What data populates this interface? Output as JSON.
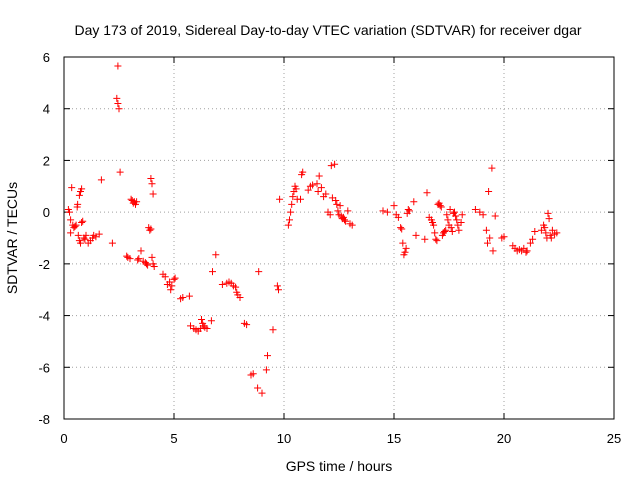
{
  "chart_data": {
    "type": "scatter",
    "title": "Day 173 of 2019, Sidereal Day-to-day VTEC variation (SDTVAR) for receiver dgar",
    "xlabel": "GPS time / hours",
    "ylabel": "SDTVAR / TECUs",
    "xlim": [
      0,
      25
    ],
    "ylim": [
      -8,
      6
    ],
    "x_ticks": [
      0,
      5,
      10,
      15,
      20,
      25
    ],
    "x_tick_labels": [
      "0",
      "5",
      "10",
      "15",
      "20",
      "25"
    ],
    "y_ticks": [
      -8,
      -6,
      -4,
      -2,
      0,
      2,
      4,
      6
    ],
    "y_tick_labels": [
      "-8",
      "-6",
      "-4",
      "-2",
      "0",
      "2",
      "4",
      "6"
    ],
    "grid": true,
    "marker": "+",
    "marker_color": "#ff0000",
    "series": [
      {
        "name": "SDTVAR",
        "points": [
          [
            0.2,
            0.1
          ],
          [
            0.25,
            0.0
          ],
          [
            0.3,
            -0.3
          ],
          [
            0.3,
            -0.8
          ],
          [
            0.35,
            0.95
          ],
          [
            0.4,
            -0.5
          ],
          [
            0.45,
            -0.6
          ],
          [
            0.5,
            -0.55
          ],
          [
            0.55,
            -0.5
          ],
          [
            0.6,
            0.2
          ],
          [
            0.62,
            0.3
          ],
          [
            0.7,
            0.65
          ],
          [
            0.75,
            0.8
          ],
          [
            0.8,
            0.9
          ],
          [
            0.65,
            -0.9
          ],
          [
            0.7,
            -1.1
          ],
          [
            0.75,
            -1.2
          ],
          [
            0.8,
            -0.4
          ],
          [
            0.85,
            -0.35
          ],
          [
            0.9,
            -1.0
          ],
          [
            0.95,
            -1.05
          ],
          [
            1.0,
            -0.9
          ],
          [
            1.1,
            -1.2
          ],
          [
            1.2,
            -1.1
          ],
          [
            1.3,
            -1.0
          ],
          [
            1.35,
            -0.9
          ],
          [
            1.45,
            -0.95
          ],
          [
            1.6,
            -0.85
          ],
          [
            1.7,
            1.25
          ],
          [
            2.2,
            -1.2
          ],
          [
            2.4,
            4.4
          ],
          [
            2.45,
            4.2
          ],
          [
            2.5,
            4.0
          ],
          [
            2.55,
            1.55
          ],
          [
            2.45,
            5.65
          ],
          [
            2.85,
            -1.7
          ],
          [
            2.9,
            -1.75
          ],
          [
            3.0,
            -1.8
          ],
          [
            3.05,
            0.5
          ],
          [
            3.1,
            0.45
          ],
          [
            3.15,
            0.35
          ],
          [
            3.2,
            0.4
          ],
          [
            3.25,
            0.3
          ],
          [
            3.3,
            0.4
          ],
          [
            3.35,
            -1.85
          ],
          [
            3.4,
            -1.8
          ],
          [
            3.5,
            -1.5
          ],
          [
            3.6,
            -1.9
          ],
          [
            3.7,
            -1.95
          ],
          [
            3.75,
            -2.0
          ],
          [
            3.8,
            -2.05
          ],
          [
            3.85,
            -0.6
          ],
          [
            3.9,
            -0.7
          ],
          [
            3.95,
            -0.65
          ],
          [
            3.95,
            1.3
          ],
          [
            4.0,
            1.1
          ],
          [
            4.05,
            0.7
          ],
          [
            4.0,
            -1.75
          ],
          [
            4.05,
            -2.0
          ],
          [
            4.1,
            -2.1
          ],
          [
            4.5,
            -2.4
          ],
          [
            4.6,
            -2.5
          ],
          [
            4.7,
            -2.8
          ],
          [
            4.8,
            -2.7
          ],
          [
            4.85,
            -3.0
          ],
          [
            4.9,
            -2.85
          ],
          [
            5.0,
            -2.6
          ],
          [
            5.05,
            -2.55
          ],
          [
            5.3,
            -3.35
          ],
          [
            5.4,
            -3.3
          ],
          [
            5.7,
            -3.25
          ],
          [
            5.75,
            -4.4
          ],
          [
            5.9,
            -4.5
          ],
          [
            6.0,
            -4.55
          ],
          [
            6.1,
            -4.6
          ],
          [
            6.2,
            -4.5
          ],
          [
            6.25,
            -4.15
          ],
          [
            6.3,
            -4.3
          ],
          [
            6.35,
            -4.4
          ],
          [
            6.4,
            -4.45
          ],
          [
            6.5,
            -4.5
          ],
          [
            6.7,
            -4.2
          ],
          [
            6.75,
            -2.3
          ],
          [
            6.9,
            -1.65
          ],
          [
            7.2,
            -2.8
          ],
          [
            7.4,
            -2.75
          ],
          [
            7.5,
            -2.7
          ],
          [
            7.6,
            -2.75
          ],
          [
            7.7,
            -2.85
          ],
          [
            7.8,
            -2.9
          ],
          [
            7.85,
            -3.1
          ],
          [
            7.9,
            -3.2
          ],
          [
            8.0,
            -3.3
          ],
          [
            8.2,
            -4.3
          ],
          [
            8.3,
            -4.35
          ],
          [
            8.5,
            -6.3
          ],
          [
            8.6,
            -6.25
          ],
          [
            8.8,
            -6.8
          ],
          [
            8.85,
            -2.3
          ],
          [
            9.0,
            -7.0
          ],
          [
            9.2,
            -6.1
          ],
          [
            9.25,
            -5.55
          ],
          [
            9.5,
            -4.55
          ],
          [
            9.7,
            -2.85
          ],
          [
            9.75,
            -3.0
          ],
          [
            9.8,
            0.5
          ],
          [
            10.2,
            -0.5
          ],
          [
            10.25,
            -0.3
          ],
          [
            10.3,
            0.0
          ],
          [
            10.35,
            0.3
          ],
          [
            10.4,
            0.6
          ],
          [
            10.45,
            0.8
          ],
          [
            10.5,
            1.0
          ],
          [
            10.55,
            0.9
          ],
          [
            10.6,
            0.5
          ],
          [
            10.75,
            0.5
          ],
          [
            10.8,
            1.45
          ],
          [
            10.85,
            1.55
          ],
          [
            11.1,
            0.85
          ],
          [
            11.2,
            1.0
          ],
          [
            11.3,
            1.05
          ],
          [
            11.5,
            1.1
          ],
          [
            11.55,
            0.8
          ],
          [
            11.6,
            1.4
          ],
          [
            11.7,
            0.95
          ],
          [
            11.8,
            0.6
          ],
          [
            11.9,
            0.7
          ],
          [
            12.0,
            0.0
          ],
          [
            12.1,
            -0.1
          ],
          [
            12.15,
            1.8
          ],
          [
            12.2,
            0.55
          ],
          [
            12.3,
            1.85
          ],
          [
            12.35,
            0.45
          ],
          [
            12.4,
            0.3
          ],
          [
            12.45,
            0.05
          ],
          [
            12.5,
            -0.1
          ],
          [
            12.55,
            0.25
          ],
          [
            12.6,
            -0.15
          ],
          [
            12.65,
            -0.25
          ],
          [
            12.7,
            -0.2
          ],
          [
            12.75,
            -0.3
          ],
          [
            12.8,
            -0.35
          ],
          [
            12.9,
            0.05
          ],
          [
            13.0,
            -0.45
          ],
          [
            13.1,
            -0.5
          ],
          [
            14.5,
            0.05
          ],
          [
            14.7,
            0.0
          ],
          [
            15.0,
            0.25
          ],
          [
            15.1,
            -0.1
          ],
          [
            15.2,
            -0.2
          ],
          [
            15.3,
            -0.6
          ],
          [
            15.35,
            -0.65
          ],
          [
            15.4,
            -1.2
          ],
          [
            15.45,
            -1.65
          ],
          [
            15.5,
            -1.55
          ],
          [
            15.55,
            -1.4
          ],
          [
            15.6,
            -0.05
          ],
          [
            15.65,
            0.1
          ],
          [
            15.7,
            0.05
          ],
          [
            15.9,
            0.4
          ],
          [
            16.0,
            -0.9
          ],
          [
            16.4,
            -1.05
          ],
          [
            16.5,
            0.75
          ],
          [
            16.6,
            -0.2
          ],
          [
            16.7,
            -0.3
          ],
          [
            16.75,
            -0.4
          ],
          [
            16.8,
            -0.5
          ],
          [
            16.85,
            -0.8
          ],
          [
            16.9,
            -1.05
          ],
          [
            16.95,
            -1.1
          ],
          [
            17.0,
            0.3
          ],
          [
            17.05,
            0.35
          ],
          [
            17.1,
            0.25
          ],
          [
            17.15,
            0.2
          ],
          [
            17.2,
            -0.9
          ],
          [
            17.25,
            -0.8
          ],
          [
            17.3,
            -0.75
          ],
          [
            17.35,
            -0.7
          ],
          [
            17.4,
            -0.1
          ],
          [
            17.45,
            -0.3
          ],
          [
            17.5,
            -0.5
          ],
          [
            17.55,
            0.1
          ],
          [
            17.6,
            -0.6
          ],
          [
            17.65,
            -0.75
          ],
          [
            17.7,
            -0.05
          ],
          [
            17.75,
            0.0
          ],
          [
            17.8,
            -0.15
          ],
          [
            17.85,
            -0.3
          ],
          [
            17.9,
            -0.5
          ],
          [
            17.95,
            -0.7
          ],
          [
            18.05,
            -0.4
          ],
          [
            18.1,
            -0.1
          ],
          [
            18.7,
            0.1
          ],
          [
            18.9,
            0.0
          ],
          [
            19.05,
            -0.1
          ],
          [
            19.2,
            -0.7
          ],
          [
            19.25,
            -1.2
          ],
          [
            19.3,
            0.8
          ],
          [
            19.35,
            -1.0
          ],
          [
            19.45,
            1.7
          ],
          [
            19.5,
            -1.5
          ],
          [
            19.6,
            -0.15
          ],
          [
            19.9,
            -1.0
          ],
          [
            20.0,
            -0.95
          ],
          [
            20.4,
            -1.3
          ],
          [
            20.5,
            -1.4
          ],
          [
            20.6,
            -1.5
          ],
          [
            20.7,
            -1.45
          ],
          [
            20.8,
            -1.5
          ],
          [
            20.9,
            -1.4
          ],
          [
            21.0,
            -1.55
          ],
          [
            21.05,
            -1.5
          ],
          [
            21.2,
            -1.2
          ],
          [
            21.3,
            -1.05
          ],
          [
            21.4,
            -0.75
          ],
          [
            21.7,
            -0.7
          ],
          [
            21.8,
            -0.5
          ],
          [
            21.85,
            -0.6
          ],
          [
            21.9,
            -0.8
          ],
          [
            21.95,
            -1.0
          ],
          [
            22.0,
            -0.05
          ],
          [
            22.05,
            -0.25
          ],
          [
            22.1,
            -0.9
          ],
          [
            22.15,
            -1.0
          ],
          [
            22.2,
            -0.7
          ],
          [
            22.3,
            -0.85
          ],
          [
            22.4,
            -0.8
          ]
        ]
      }
    ]
  }
}
